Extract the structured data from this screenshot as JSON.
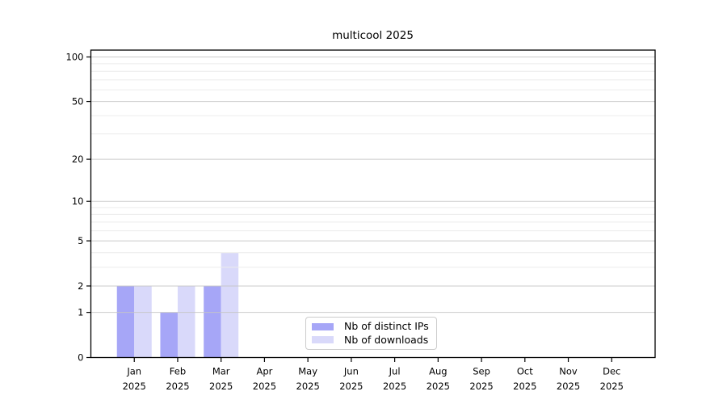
{
  "chart_data": {
    "type": "bar",
    "title": "multicool 2025",
    "categories": [
      "Jan",
      "Feb",
      "Mar",
      "Apr",
      "May",
      "Jun",
      "Jul",
      "Aug",
      "Sep",
      "Oct",
      "Nov",
      "Dec"
    ],
    "year": "2025",
    "series": [
      {
        "name": "Nb of distinct IPs",
        "color": "#a6a6f7",
        "values": [
          2,
          1,
          2,
          0,
          0,
          0,
          0,
          0,
          0,
          0,
          0,
          0
        ]
      },
      {
        "name": "Nb of downloads",
        "color": "#d9d9fa",
        "values": [
          2,
          2,
          4,
          0,
          0,
          0,
          0,
          0,
          0,
          0,
          0,
          0
        ]
      }
    ],
    "xlabel": "",
    "ylabel": "",
    "yscale": "log(value+1)",
    "ylim": [
      0,
      110
    ],
    "yticks": [
      0,
      1,
      2,
      5,
      10,
      20,
      50,
      100
    ],
    "major_gridlines": [
      1,
      2,
      5,
      10,
      20,
      50,
      100
    ],
    "minor_gridlines": [
      3,
      4,
      6,
      7,
      8,
      9,
      30,
      40,
      60,
      70,
      80,
      90
    ],
    "grid": true,
    "legend_position": "lower center",
    "colors": {
      "grid_major": "#c6c6c6",
      "grid_minor": "#ececec",
      "axis": "#000000",
      "text": "#000000",
      "background": "#ffffff"
    }
  }
}
